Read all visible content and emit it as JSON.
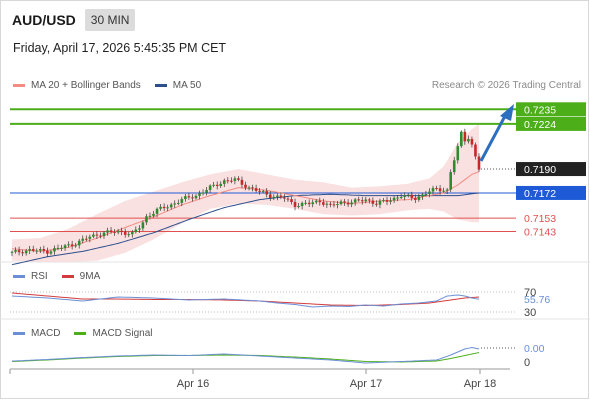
{
  "header": {
    "symbol": "AUD/USD",
    "interval": "30 MIN",
    "datetime": "Friday, April 17, 2026 5:45:35 PM CET",
    "credit": "Research © 2026 Trading Central"
  },
  "colors": {
    "ma20": "#f28b82",
    "ma50": "#2c4f8c",
    "bollinger_fill": "#f9dcdc",
    "bull": "#2e8b2e",
    "bear": "#c62828",
    "resistance": "#4caf1a",
    "pivot": "#1e5ad6",
    "support": "#e05050",
    "rsi": "#6b8fd6",
    "rsi_ma": "#d23b3b",
    "macd": "#6b8fd6",
    "macd_signal": "#4caf1a",
    "arrow": "#2c6fbf"
  },
  "chart_data": [
    {
      "type": "candlestick",
      "title": "AUD/USD",
      "legend": [
        {
          "name": "MA 20 + Bollinger Bands",
          "color": "#f28b82"
        },
        {
          "name": "MA 50",
          "color": "#2c4f8c"
        }
      ],
      "ylim": [
        7120,
        7242
      ],
      "scale": 0.0001,
      "x_ticks": [
        "Apr 16",
        "Apr 17",
        "Apr 18"
      ],
      "current_price": "0.7190",
      "levels": [
        {
          "value": 7235,
          "label": "0.7235",
          "kind": "resistance"
        },
        {
          "value": 7224,
          "label": "0.7224",
          "kind": "resistance"
        },
        {
          "value": 7172,
          "label": "0.7172",
          "kind": "pivot"
        },
        {
          "value": 7153,
          "label": "0.7153",
          "kind": "support"
        },
        {
          "value": 7143,
          "label": "0.7143",
          "kind": "support"
        }
      ],
      "path": [
        [
          0,
          7127
        ],
        [
          5,
          7129
        ],
        [
          10,
          7128
        ],
        [
          14,
          7131
        ],
        [
          18,
          7134
        ],
        [
          22,
          7139
        ],
        [
          26,
          7142
        ],
        [
          30,
          7143
        ],
        [
          34,
          7141
        ],
        [
          36,
          7146
        ],
        [
          38,
          7154
        ],
        [
          41,
          7159
        ],
        [
          45,
          7163
        ],
        [
          48,
          7167
        ],
        [
          52,
          7170
        ],
        [
          56,
          7176
        ],
        [
          60,
          7181
        ],
        [
          63,
          7182
        ],
        [
          67,
          7176
        ],
        [
          70,
          7173
        ],
        [
          73,
          7170
        ],
        [
          77,
          7168
        ],
        [
          80,
          7163
        ],
        [
          84,
          7164
        ],
        [
          87,
          7166
        ],
        [
          90,
          7162
        ],
        [
          93,
          7165
        ],
        [
          96,
          7165
        ],
        [
          100,
          7167
        ],
        [
          103,
          7164
        ],
        [
          106,
          7166
        ],
        [
          110,
          7170
        ],
        [
          114,
          7168
        ],
        [
          117,
          7172
        ],
        [
          120,
          7175
        ],
        [
          123,
          7174
        ],
        [
          124,
          7188
        ],
        [
          126,
          7206
        ],
        [
          127,
          7217
        ],
        [
          128,
          7212
        ],
        [
          129,
          7214
        ],
        [
          130,
          7208
        ],
        [
          131,
          7199
        ],
        [
          132,
          7190
        ]
      ],
      "ma20": [
        [
          0,
          7130
        ],
        [
          8,
          7128
        ],
        [
          16,
          7131
        ],
        [
          24,
          7138
        ],
        [
          32,
          7146
        ],
        [
          40,
          7154
        ],
        [
          48,
          7163
        ],
        [
          56,
          7170
        ],
        [
          64,
          7176
        ],
        [
          72,
          7174
        ],
        [
          80,
          7170
        ],
        [
          88,
          7166
        ],
        [
          96,
          7164
        ],
        [
          104,
          7166
        ],
        [
          112,
          7167
        ],
        [
          118,
          7170
        ],
        [
          122,
          7172
        ],
        [
          126,
          7178
        ],
        [
          130,
          7186
        ],
        [
          132,
          7188
        ]
      ],
      "bb_upper": [
        [
          0,
          7137
        ],
        [
          8,
          7138
        ],
        [
          16,
          7145
        ],
        [
          24,
          7156
        ],
        [
          32,
          7166
        ],
        [
          40,
          7173
        ],
        [
          48,
          7180
        ],
        [
          56,
          7186
        ],
        [
          64,
          7190
        ],
        [
          72,
          7186
        ],
        [
          80,
          7182
        ],
        [
          88,
          7180
        ],
        [
          96,
          7176
        ],
        [
          104,
          7177
        ],
        [
          112,
          7179
        ],
        [
          118,
          7183
        ],
        [
          122,
          7192
        ],
        [
          126,
          7210
        ],
        [
          130,
          7220
        ],
        [
          132,
          7224
        ]
      ],
      "bb_lower": [
        [
          0,
          7121
        ],
        [
          8,
          7120
        ],
        [
          16,
          7120
        ],
        [
          24,
          7121
        ],
        [
          32,
          7127
        ],
        [
          40,
          7137
        ],
        [
          48,
          7149
        ],
        [
          56,
          7160
        ],
        [
          64,
          7164
        ],
        [
          72,
          7163
        ],
        [
          80,
          7160
        ],
        [
          88,
          7156
        ],
        [
          96,
          7155
        ],
        [
          104,
          7156
        ],
        [
          112,
          7159
        ],
        [
          118,
          7160
        ],
        [
          122,
          7158
        ],
        [
          126,
          7152
        ],
        [
          130,
          7150
        ],
        [
          132,
          7150
        ]
      ],
      "ma50": [
        [
          0,
          7118
        ],
        [
          10,
          7124
        ],
        [
          20,
          7128
        ],
        [
          30,
          7134
        ],
        [
          40,
          7142
        ],
        [
          50,
          7152
        ],
        [
          60,
          7161
        ],
        [
          70,
          7167
        ],
        [
          80,
          7170
        ],
        [
          90,
          7171
        ],
        [
          100,
          7170
        ],
        [
          110,
          7170
        ],
        [
          120,
          7170
        ],
        [
          126,
          7170
        ],
        [
          132,
          7172
        ]
      ]
    },
    {
      "type": "line",
      "title": "RSI",
      "legend": [
        {
          "name": "RSI",
          "color": "#6b8fd6"
        },
        {
          "name": "9MA",
          "color": "#d23b3b"
        }
      ],
      "ylim": [
        30,
        70
      ],
      "y_ticks": [
        "70",
        "30"
      ],
      "current_label": "55.76",
      "rsi": [
        [
          0,
          62
        ],
        [
          10,
          58
        ],
        [
          20,
          52
        ],
        [
          30,
          60
        ],
        [
          40,
          58
        ],
        [
          50,
          54
        ],
        [
          60,
          56
        ],
        [
          70,
          52
        ],
        [
          75,
          48
        ],
        [
          80,
          45
        ],
        [
          85,
          40
        ],
        [
          90,
          42
        ],
        [
          95,
          41
        ],
        [
          100,
          44
        ],
        [
          105,
          42
        ],
        [
          110,
          46
        ],
        [
          115,
          48
        ],
        [
          120,
          52
        ],
        [
          123,
          62
        ],
        [
          126,
          64
        ],
        [
          128,
          62
        ],
        [
          130,
          58
        ],
        [
          132,
          55.76
        ]
      ],
      "ma9": [
        [
          0,
          68
        ],
        [
          10,
          62
        ],
        [
          20,
          56
        ],
        [
          30,
          56
        ],
        [
          40,
          55
        ],
        [
          50,
          55
        ],
        [
          60,
          54
        ],
        [
          70,
          52
        ],
        [
          80,
          48
        ],
        [
          90,
          44
        ],
        [
          100,
          43
        ],
        [
          110,
          45
        ],
        [
          118,
          48
        ],
        [
          124,
          54
        ],
        [
          128,
          58
        ],
        [
          132,
          60
        ]
      ]
    },
    {
      "type": "line",
      "title": "MACD",
      "legend": [
        {
          "name": "MACD",
          "color": "#6b8fd6"
        },
        {
          "name": "MACD Signal",
          "color": "#4caf1a"
        }
      ],
      "y_ticks": [
        "0.00",
        "0"
      ],
      "macd": [
        [
          0,
          0.2
        ],
        [
          10,
          0.5
        ],
        [
          20,
          0.9
        ],
        [
          30,
          1.2
        ],
        [
          40,
          1.4
        ],
        [
          50,
          1.3
        ],
        [
          60,
          1.6
        ],
        [
          70,
          1.2
        ],
        [
          80,
          0.8
        ],
        [
          90,
          0.4
        ],
        [
          100,
          -0.2
        ],
        [
          110,
          0.1
        ],
        [
          120,
          0.4
        ],
        [
          124,
          1.4
        ],
        [
          128,
          2.6
        ],
        [
          130,
          2.9
        ],
        [
          132,
          2.6
        ]
      ],
      "signal": [
        [
          0,
          0.1
        ],
        [
          10,
          0.4
        ],
        [
          20,
          0.8
        ],
        [
          30,
          1.1
        ],
        [
          40,
          1.3
        ],
        [
          50,
          1.3
        ],
        [
          60,
          1.4
        ],
        [
          70,
          1.3
        ],
        [
          80,
          1.0
        ],
        [
          90,
          0.6
        ],
        [
          100,
          0.1
        ],
        [
          110,
          0.0
        ],
        [
          120,
          0.2
        ],
        [
          124,
          0.7
        ],
        [
          128,
          1.3
        ],
        [
          132,
          1.9
        ]
      ]
    }
  ]
}
